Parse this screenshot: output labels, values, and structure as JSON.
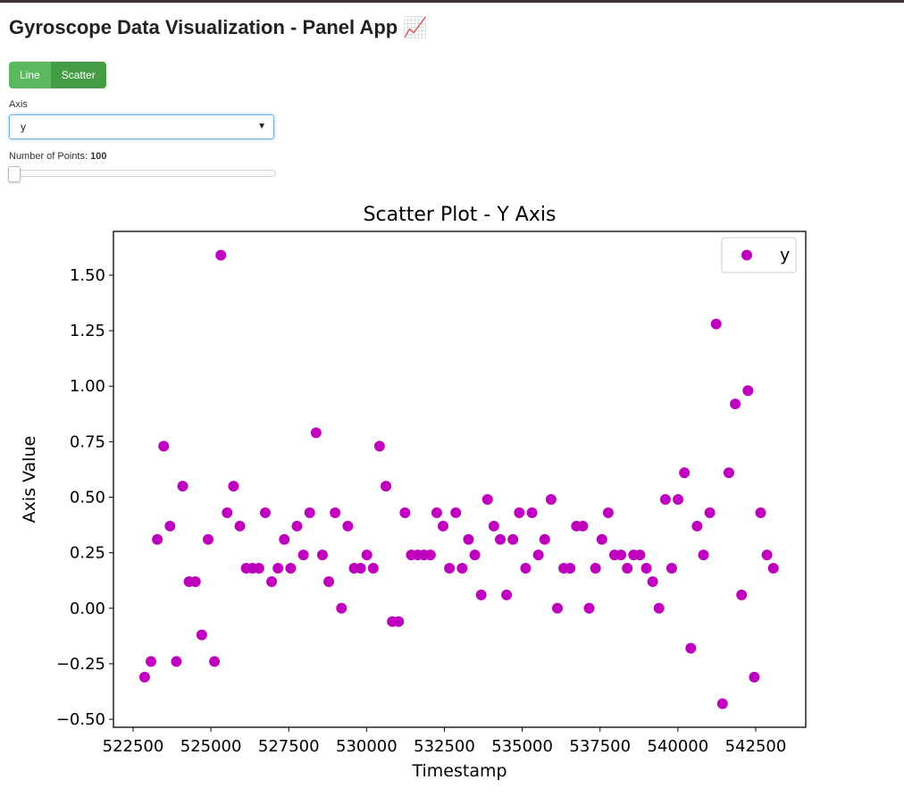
{
  "header": {
    "title": "Gyroscope Data Visualization - Panel App 📈"
  },
  "controls": {
    "buttons": [
      "Line",
      "Scatter"
    ],
    "select": {
      "label": "Axis",
      "value": "y"
    },
    "slider": {
      "label": "Number of Points:",
      "value": 100
    }
  },
  "chart_data": {
    "type": "scatter",
    "title": "Scatter Plot - Y Axis",
    "x_label": "Timestamp",
    "y_label": "Axis Value",
    "xlim": [
      521869,
      544107
    ],
    "ylim": [
      -0.536,
      1.697
    ],
    "xticks": [
      522500,
      525000,
      527500,
      530000,
      532500,
      535000,
      537500,
      540000,
      542500
    ],
    "yticks": [
      {
        "value": -0.5,
        "label": "−0.50"
      },
      {
        "value": -0.25,
        "label": "−0.25"
      },
      {
        "value": 0,
        "label": "0.00"
      },
      {
        "value": 0.25,
        "label": "0.25"
      },
      {
        "value": 0.5,
        "label": "0.50"
      },
      {
        "value": 0.75,
        "label": "0.75"
      },
      {
        "value": 1,
        "label": "1.00"
      },
      {
        "value": 1.25,
        "label": "1.25"
      },
      {
        "value": 1.5,
        "label": "1.50"
      }
    ],
    "legend": "upper right",
    "grid": false,
    "x": [
      522870,
      523074,
      523278,
      523482,
      523686,
      523890,
      524094,
      524298,
      524502,
      524706,
      524910,
      525114,
      525318,
      525522,
      525726,
      525930,
      526134,
      526338,
      526542,
      526746,
      526950,
      527154,
      527358,
      527562,
      527766,
      527970,
      528174,
      528378,
      528582,
      528786,
      528990,
      529194,
      529398,
      529602,
      529806,
      530010,
      530214,
      530418,
      530622,
      530826,
      531030,
      531234,
      531438,
      531642,
      531846,
      532050,
      532254,
      532458,
      532662,
      532866,
      533070,
      533274,
      533478,
      533682,
      533886,
      534090,
      534294,
      534498,
      534702,
      534906,
      535110,
      535314,
      535518,
      535722,
      535926,
      536130,
      536334,
      536538,
      536742,
      536946,
      537150,
      537354,
      537558,
      537762,
      537966,
      538170,
      538374,
      538578,
      538782,
      538986,
      539190,
      539394,
      539598,
      539802,
      540006,
      540210,
      540414,
      540618,
      540822,
      541026,
      541230,
      541434,
      541638,
      541842,
      542046,
      542250,
      542454,
      542658,
      542862,
      543066
    ],
    "series": [
      {
        "name": "y",
        "color": "#bf00bf",
        "values": [
          -0.31,
          -0.24,
          0.31,
          0.73,
          0.37,
          -0.24,
          0.55,
          0.12,
          0.12,
          -0.12,
          0.31,
          -0.24,
          1.59,
          0.43,
          0.55,
          0.37,
          0.18,
          0.18,
          0.18,
          0.43,
          0.12,
          0.18,
          0.31,
          0.18,
          0.37,
          0.24,
          0.43,
          0.79,
          0.24,
          0.12,
          0.43,
          0.0,
          0.37,
          0.18,
          0.18,
          0.24,
          0.18,
          0.73,
          0.55,
          -0.06,
          -0.06,
          0.43,
          0.24,
          0.24,
          0.24,
          0.24,
          0.43,
          0.37,
          0.18,
          0.43,
          0.18,
          0.31,
          0.24,
          0.06,
          0.49,
          0.37,
          0.31,
          0.06,
          0.31,
          0.43,
          0.18,
          0.43,
          0.24,
          0.31,
          0.49,
          0.0,
          0.18,
          0.18,
          0.37,
          0.37,
          0.0,
          0.18,
          0.31,
          0.43,
          0.24,
          0.24,
          0.18,
          0.24,
          0.24,
          0.18,
          0.12,
          0.0,
          0.49,
          0.18,
          0.49,
          0.61,
          -0.18,
          0.37,
          0.24,
          0.43,
          1.28,
          -0.43,
          0.61,
          0.92,
          0.06,
          0.98,
          -0.31,
          0.43,
          0.24,
          0.18
        ]
      }
    ]
  }
}
